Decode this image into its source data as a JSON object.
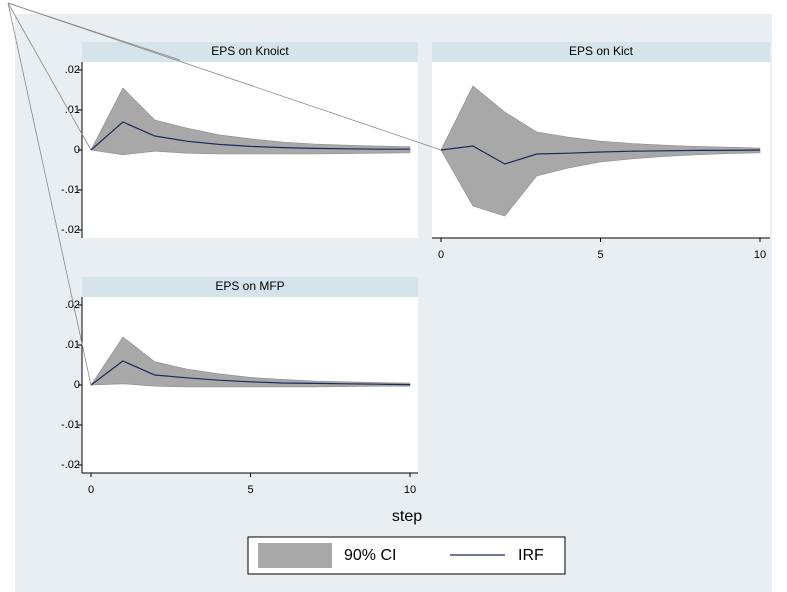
{
  "chart_data": [
    {
      "type": "line",
      "title": "EPS on Knoict",
      "x": [
        0,
        1,
        2,
        3,
        4,
        5,
        6,
        7,
        8,
        9,
        10
      ],
      "series": [
        {
          "name": "90% CI",
          "color": "#a8a8a8",
          "upper": [
            0,
            0.0155,
            0.0075,
            0.0055,
            0.0038,
            0.0028,
            0.002,
            0.0015,
            0.0012,
            0.001,
            0.0008
          ],
          "lower": [
            0,
            -0.0012,
            -0.0003,
            -0.0008,
            -0.001,
            -0.001,
            -0.001,
            -0.001,
            -0.0009,
            -0.0008,
            -0.0007
          ]
        },
        {
          "name": "IRF",
          "color": "#1a2a5a",
          "values": [
            0,
            0.007,
            0.0035,
            0.0022,
            0.0014,
            0.0009,
            0.0006,
            0.0004,
            0.0003,
            0.0002,
            0.0002
          ]
        }
      ],
      "xlim": [
        0,
        10
      ],
      "ylim": [
        -0.022,
        0.022
      ],
      "yticks": [
        {
          "value": 0.02,
          "label": ".02"
        },
        {
          "value": 0.01,
          "label": ".01"
        },
        0,
        {
          "value": -0.01,
          "label": "-.01"
        },
        {
          "value": -0.02,
          "label": "-.02"
        }
      ]
    },
    {
      "type": "line",
      "title": "EPS on Kict",
      "x": [
        0,
        1,
        2,
        3,
        4,
        5,
        6,
        7,
        8,
        9,
        10
      ],
      "series": [
        {
          "name": "90% CI",
          "color": "#a8a8a8",
          "upper": [
            0,
            0.016,
            0.0095,
            0.0045,
            0.0032,
            0.0022,
            0.0016,
            0.0012,
            0.0009,
            0.0007,
            0.0005
          ],
          "lower": [
            0,
            -0.014,
            -0.0165,
            -0.0065,
            -0.0045,
            -0.003,
            -0.0022,
            -0.0016,
            -0.0012,
            -0.0009,
            -0.0007
          ]
        },
        {
          "name": "IRF",
          "color": "#1a2a5a",
          "values": [
            0,
            0.001,
            -0.0035,
            -0.001,
            -0.0008,
            -0.0005,
            -0.0003,
            -0.0002,
            -0.0001,
            -0.0001,
            0
          ]
        }
      ],
      "xlim": [
        0,
        10
      ],
      "ylim": [
        -0.022,
        0.022
      ],
      "xticks": [
        0,
        5,
        10
      ]
    },
    {
      "type": "line",
      "title": "EPS on MFP",
      "xlabel": "step",
      "x": [
        0,
        1,
        2,
        3,
        4,
        5,
        6,
        7,
        8,
        9,
        10
      ],
      "series": [
        {
          "name": "90% CI",
          "color": "#a8a8a8",
          "upper": [
            0,
            0.012,
            0.0058,
            0.004,
            0.0028,
            0.0019,
            0.0014,
            0.001,
            0.0008,
            0.0006,
            0.0005
          ],
          "lower": [
            0,
            0.0003,
            -0.0003,
            -0.0005,
            -0.0005,
            -0.0005,
            -0.0005,
            -0.0005,
            -0.0004,
            -0.0003,
            -0.0003
          ]
        },
        {
          "name": "IRF",
          "color": "#1a2a5a",
          "values": [
            0,
            0.006,
            0.0025,
            0.0018,
            0.0012,
            0.0008,
            0.0005,
            0.0004,
            0.0003,
            0.0002,
            0.0001
          ]
        }
      ],
      "xlim": [
        0,
        10
      ],
      "ylim": [
        -0.022,
        0.022
      ],
      "xticks": [
        0,
        5,
        10
      ],
      "yticks": [
        {
          "value": 0.02,
          "label": ".02"
        },
        {
          "value": 0.01,
          "label": ".01"
        },
        0,
        {
          "value": -0.01,
          "label": "-.01"
        },
        {
          "value": -0.02,
          "label": "-.02"
        }
      ]
    }
  ]
}
